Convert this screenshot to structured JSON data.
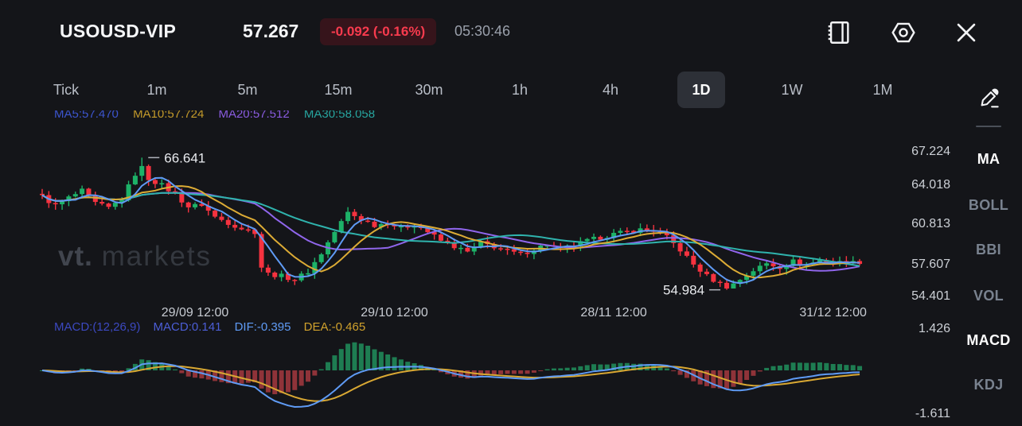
{
  "header": {
    "symbol": "USOUSD-VIP",
    "price": "57.267",
    "change": "-0.092 (-0.16%)",
    "time": "05:30:46",
    "change_color": "#f93b4e",
    "icons": [
      "orderbook",
      "settings",
      "close"
    ]
  },
  "timeframes": {
    "items": [
      "Tick",
      "1m",
      "5m",
      "15m",
      "30m",
      "1h",
      "4h",
      "1D",
      "1W",
      "1M"
    ],
    "active": "1D"
  },
  "indicators_sidebar": {
    "items": [
      {
        "label": "MA",
        "active": true
      },
      {
        "label": "BOLL",
        "active": false
      },
      {
        "label": "BBI",
        "active": false
      },
      {
        "label": "VOL",
        "active": false
      },
      {
        "label": "MACD",
        "active": true
      },
      {
        "label": "KDJ",
        "active": false
      }
    ]
  },
  "ma_legend": {
    "ma5": "MA5:57.470",
    "ma10": "MA10:57.724",
    "ma20": "MA20:57.512",
    "ma30": "MA30:58.058"
  },
  "macd_legend": {
    "params": "MACD:(12,26,9)",
    "macd": "MACD:0.141",
    "dif": "DIF:-0.395",
    "dea": "DEA:-0.465"
  },
  "watermark": {
    "bold": "vt",
    "dot": ".",
    "light": "markets"
  },
  "chart_data": {
    "type": "candlestick+macd",
    "title": "USOUSD-VIP daily candles with MA(5,10,20,30) overlay and MACD(12,26,9) pane",
    "price_axis_ticks": [
      67.224,
      64.018,
      60.813,
      57.607,
      54.401
    ],
    "macd_axis_ticks": [
      1.426,
      -1.611
    ],
    "high_marker": "66.641",
    "low_marker": "54.984",
    "high_value": 66.641,
    "low_value": 54.984,
    "last_close": 57.267,
    "x_labels": [
      {
        "label": "29/09 12:00",
        "index": 23
      },
      {
        "label": "29/10 12:00",
        "index": 53
      },
      {
        "label": "28/11 12:00",
        "index": 86
      },
      {
        "label": "31/12 12:00",
        "index": 119
      }
    ],
    "candle_count": 124,
    "high_index": 15,
    "low_index": 103,
    "price_path_anchors": [
      [
        0,
        63.2
      ],
      [
        2,
        62.4
      ],
      [
        4,
        63.1
      ],
      [
        6,
        63.7
      ],
      [
        8,
        62.6
      ],
      [
        10,
        62.2
      ],
      [
        12,
        63.0
      ],
      [
        14,
        65.2
      ],
      [
        15,
        65.9
      ],
      [
        16,
        64.8
      ],
      [
        18,
        64.2
      ],
      [
        20,
        63.4
      ],
      [
        22,
        62.3
      ],
      [
        24,
        62.5
      ],
      [
        26,
        61.4
      ],
      [
        28,
        60.9
      ],
      [
        30,
        60.4
      ],
      [
        32,
        60.1
      ],
      [
        33,
        57.0
      ],
      [
        34,
        56.4
      ],
      [
        36,
        56.2
      ],
      [
        38,
        55.9
      ],
      [
        40,
        56.6
      ],
      [
        42,
        58.2
      ],
      [
        44,
        60.1
      ],
      [
        46,
        61.8
      ],
      [
        48,
        61.2
      ],
      [
        50,
        60.7
      ],
      [
        52,
        60.9
      ],
      [
        54,
        60.4
      ],
      [
        56,
        60.8
      ],
      [
        58,
        60.1
      ],
      [
        60,
        59.3
      ],
      [
        62,
        58.8
      ],
      [
        64,
        58.3
      ],
      [
        66,
        59.1
      ],
      [
        68,
        58.8
      ],
      [
        70,
        58.4
      ],
      [
        72,
        58.1
      ],
      [
        74,
        58.6
      ],
      [
        76,
        59.0
      ],
      [
        78,
        58.5
      ],
      [
        80,
        58.9
      ],
      [
        82,
        59.3
      ],
      [
        84,
        59.6
      ],
      [
        86,
        59.9
      ],
      [
        88,
        60.1
      ],
      [
        90,
        60.3
      ],
      [
        92,
        60.2
      ],
      [
        94,
        59.6
      ],
      [
        96,
        58.5
      ],
      [
        98,
        57.2
      ],
      [
        100,
        56.2
      ],
      [
        102,
        55.5
      ],
      [
        103,
        55.1
      ],
      [
        105,
        55.9
      ],
      [
        107,
        56.7
      ],
      [
        109,
        57.3
      ],
      [
        111,
        57.0
      ],
      [
        113,
        57.5
      ],
      [
        115,
        57.2
      ],
      [
        117,
        57.6
      ],
      [
        119,
        57.3
      ],
      [
        121,
        57.5
      ],
      [
        123,
        57.267
      ]
    ],
    "colors": {
      "up": "#1db268",
      "down": "#f5323f",
      "hist_up": "#1e7d52",
      "hist_down": "#8f3339",
      "dif_line": "#5f9bf5",
      "dea_line": "#d9a833",
      "ma5": "#5f9bf5",
      "ma10": "#dcab35",
      "ma20": "#9066ec",
      "ma30": "#2fb3ad",
      "marker_text": "#e8eaee"
    },
    "layout_hints": {
      "grid": "off",
      "price_pane": "top",
      "macd_pane": "bottom",
      "axis": "right"
    }
  }
}
